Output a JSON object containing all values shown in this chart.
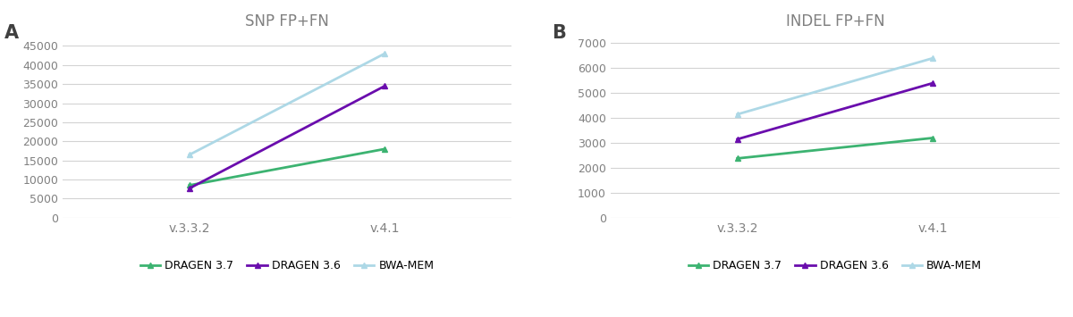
{
  "panel_A": {
    "title": "SNP FP+FN",
    "label": "A",
    "x_labels": [
      "v.3.3.2",
      "v.4.1"
    ],
    "series": {
      "DRAGEN 3.7": {
        "color": "#3cb371",
        "values": [
          8500,
          18000
        ]
      },
      "DRAGEN 3.6": {
        "color": "#6a0dad",
        "values": [
          7700,
          34500
        ]
      },
      "BWA-MEM": {
        "color": "#add8e6",
        "values": [
          16500,
          43000
        ]
      }
    },
    "ylim": [
      0,
      47000
    ],
    "yticks": [
      0,
      5000,
      10000,
      15000,
      20000,
      25000,
      30000,
      35000,
      40000,
      45000
    ]
  },
  "panel_B": {
    "title": "INDEL FP+FN",
    "label": "B",
    "x_labels": [
      "v.3.3.2",
      "v.4.1"
    ],
    "series": {
      "DRAGEN 3.7": {
        "color": "#3cb371",
        "values": [
          2380,
          3200
        ]
      },
      "DRAGEN 3.6": {
        "color": "#6a0dad",
        "values": [
          3150,
          5400
        ]
      },
      "BWA-MEM": {
        "color": "#add8e6",
        "values": [
          4150,
          6400
        ]
      }
    },
    "ylim": [
      0,
      7200
    ],
    "yticks": [
      0,
      1000,
      2000,
      3000,
      4000,
      5000,
      6000,
      7000
    ]
  },
  "legend_labels": [
    "DRAGEN 3.7",
    "DRAGEN 3.6",
    "BWA-MEM"
  ],
  "legend_colors": [
    "#3cb371",
    "#6a0dad",
    "#add8e6"
  ],
  "background_color": "#ffffff",
  "grid_color": "#d3d3d3",
  "axis_label_color": "#808080",
  "title_color": "#808080",
  "panel_label_color": "#404040",
  "line_width": 2.0,
  "marker": "^",
  "marker_size": 5
}
